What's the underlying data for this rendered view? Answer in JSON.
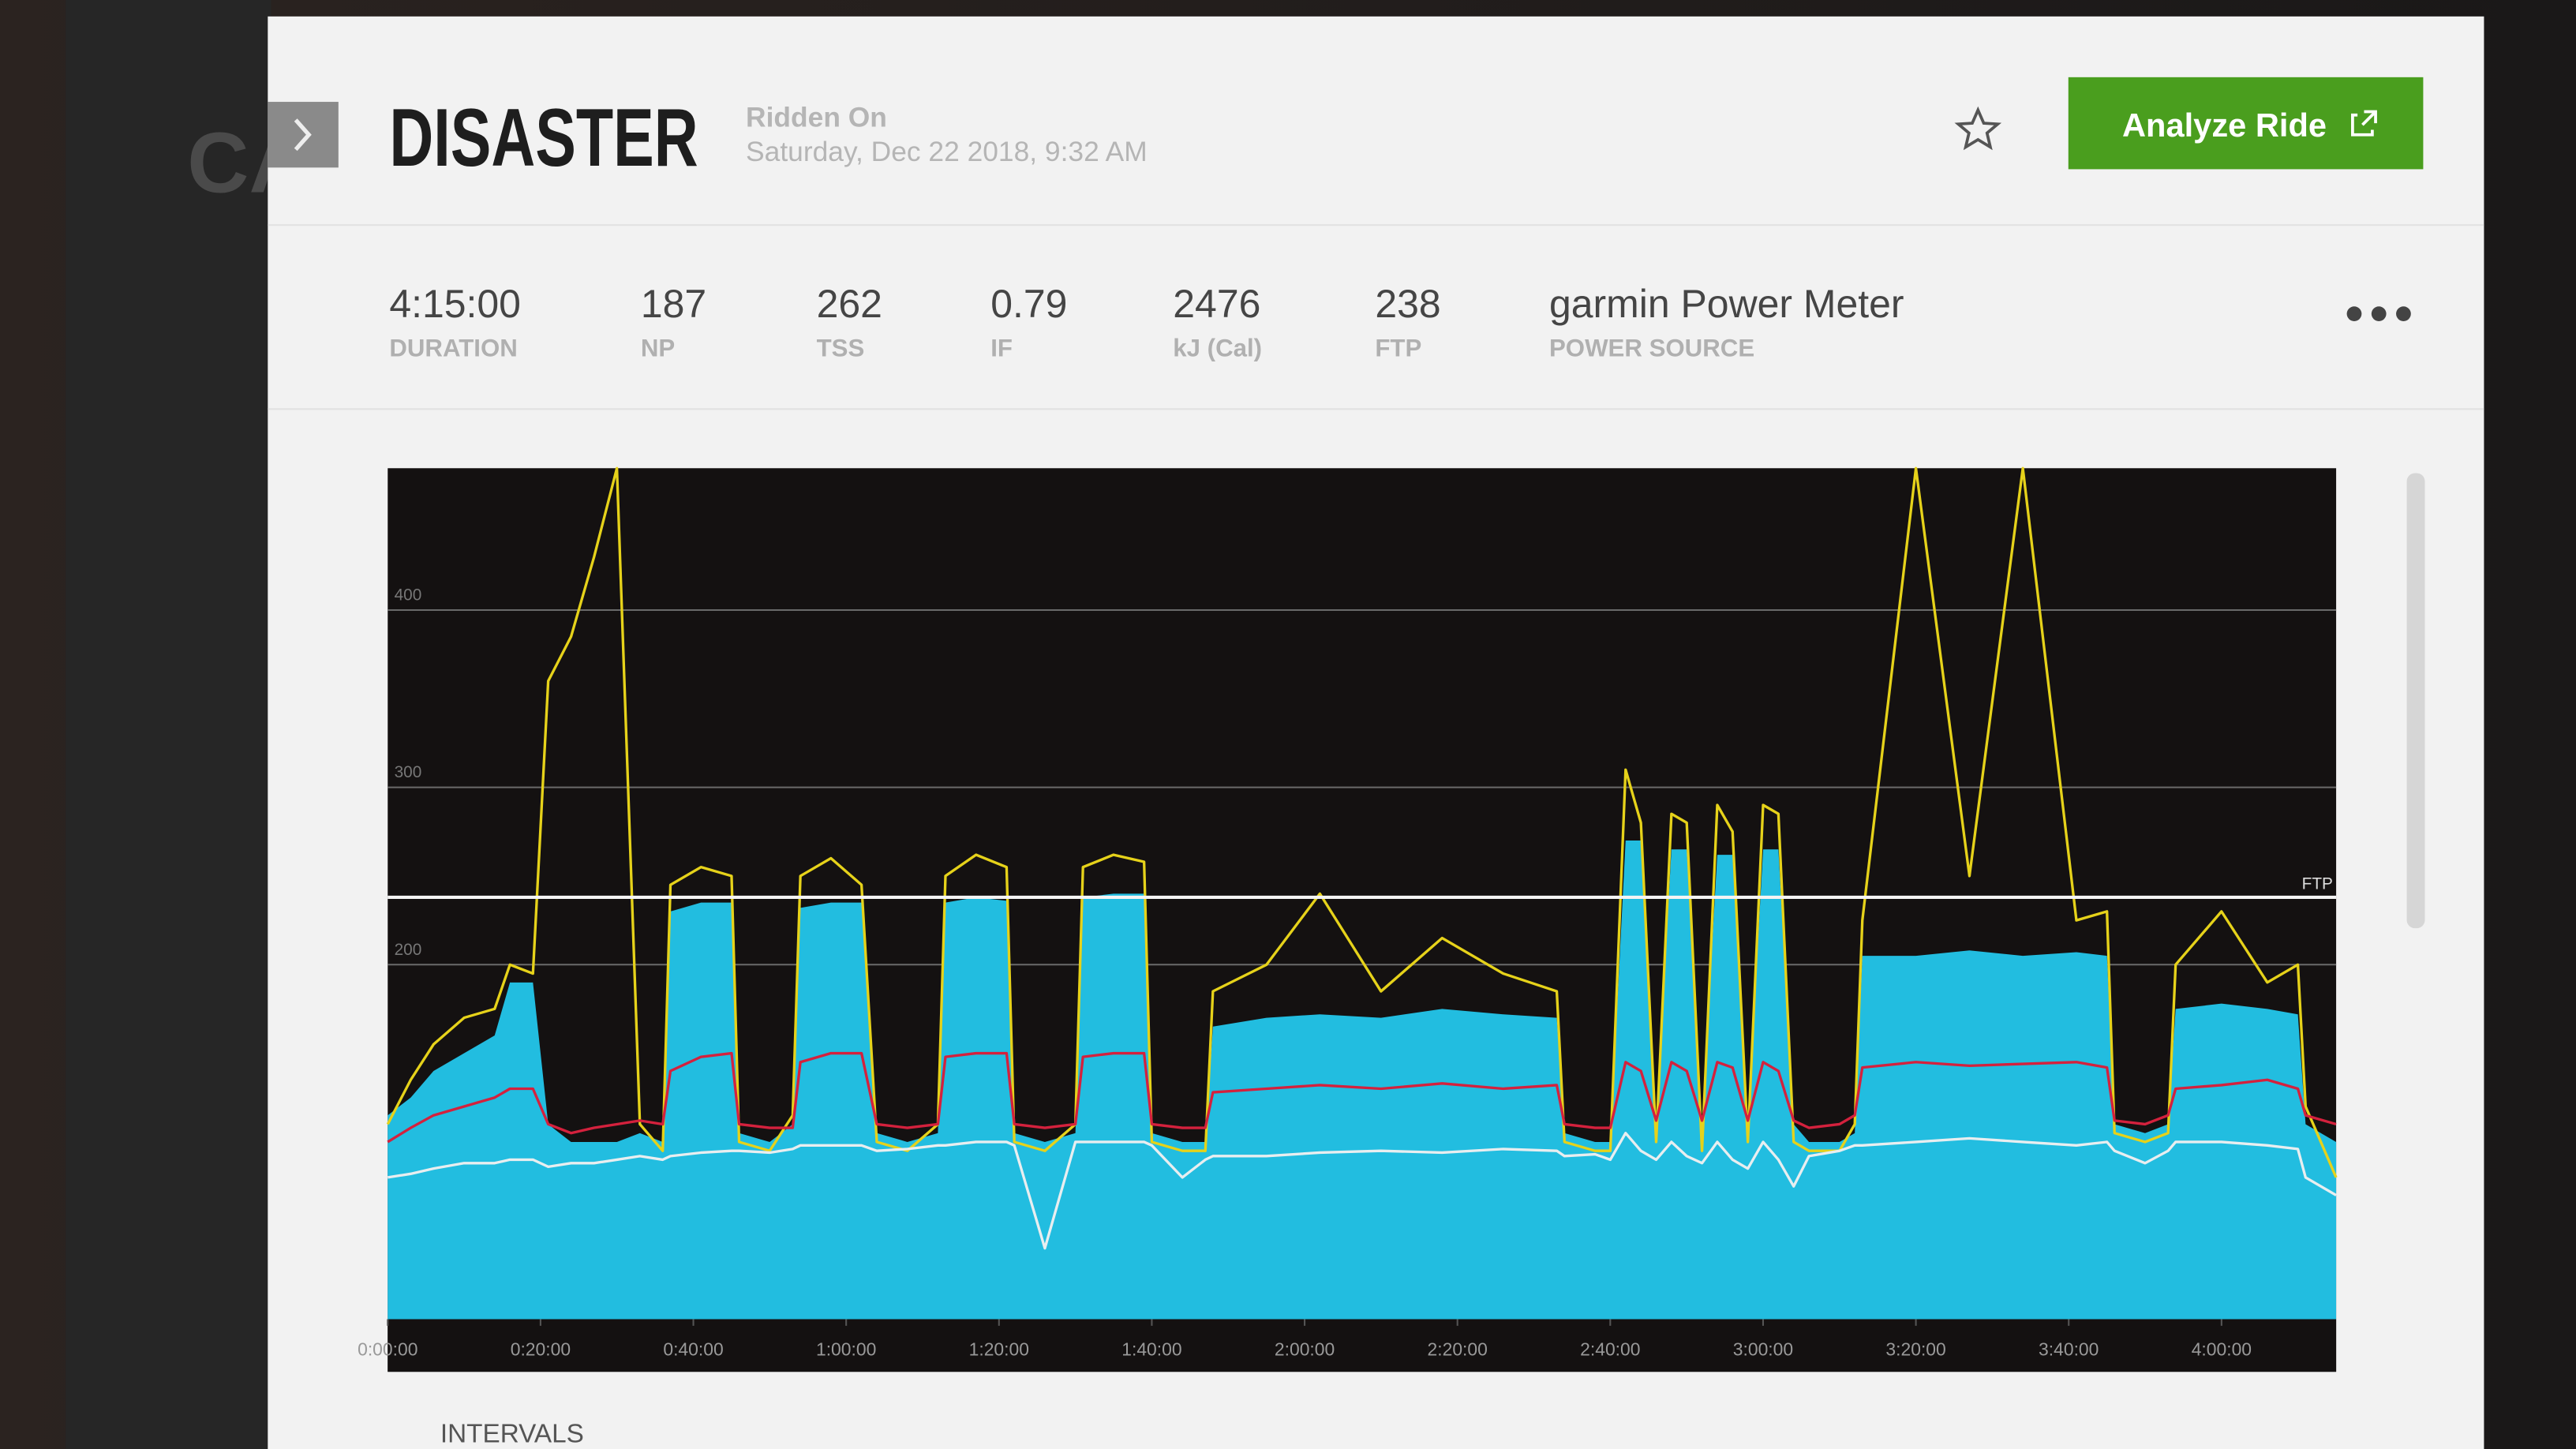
{
  "header": {
    "sidebar_text": "CA",
    "title": "DISASTER",
    "ridden_label": "Ridden On",
    "date": "Saturday, Dec 22 2018, 9:32 AM",
    "button": "Analyze Ride"
  },
  "stats": [
    {
      "value": "4:15:00",
      "label": "DURATION"
    },
    {
      "value": "187",
      "label": "NP"
    },
    {
      "value": "262",
      "label": "TSS"
    },
    {
      "value": "0.79",
      "label": "IF"
    },
    {
      "value": "2476",
      "label": "kJ (Cal)"
    },
    {
      "value": "238",
      "label": "FTP"
    },
    {
      "value": "garmin Power Meter",
      "label": "POWER SOURCE"
    }
  ],
  "chart_data": {
    "type": "line",
    "x": [
      0,
      3,
      6,
      10,
      14,
      16,
      19,
      21,
      24,
      27,
      30,
      33,
      36,
      37,
      41,
      45,
      46,
      50,
      53,
      54,
      58,
      62,
      64,
      68,
      72,
      73,
      77,
      81,
      82,
      86,
      90,
      91,
      95,
      99,
      100,
      104,
      107,
      108,
      115,
      122,
      130,
      138,
      146,
      153,
      154,
      158,
      160,
      162,
      164,
      166,
      168,
      170,
      172,
      174,
      176,
      178,
      180,
      182,
      184,
      186,
      190,
      192,
      193,
      200,
      207,
      214,
      221,
      225,
      226,
      230,
      233,
      234,
      240,
      246,
      250,
      251,
      255
    ],
    "series": [
      {
        "color": "#22bde0",
        "fill": true,
        "values": [
          115,
          125,
          140,
          150,
          160,
          190,
          190,
          110,
          100,
          100,
          100,
          105,
          100,
          230,
          235,
          235,
          105,
          100,
          110,
          232,
          235,
          235,
          105,
          100,
          105,
          235,
          238,
          236,
          105,
          100,
          105,
          238,
          240,
          240,
          105,
          100,
          100,
          165,
          170,
          172,
          170,
          175,
          172,
          170,
          105,
          100,
          100,
          270,
          270,
          110,
          265,
          265,
          110,
          262,
          262,
          110,
          265,
          265,
          110,
          100,
          100,
          105,
          205,
          205,
          208,
          205,
          207,
          205,
          110,
          105,
          110,
          175,
          178,
          175,
          172,
          110,
          100
        ]
      },
      {
        "color": "#e6d21a",
        "fill": false,
        "values": [
          110,
          135,
          155,
          170,
          175,
          200,
          195,
          360,
          385,
          430,
          480,
          110,
          95,
          245,
          255,
          250,
          100,
          95,
          115,
          250,
          260,
          245,
          100,
          95,
          110,
          250,
          262,
          255,
          100,
          95,
          110,
          255,
          262,
          258,
          100,
          95,
          95,
          185,
          200,
          240,
          185,
          215,
          195,
          185,
          100,
          95,
          95,
          310,
          280,
          100,
          285,
          280,
          95,
          290,
          275,
          100,
          290,
          285,
          100,
          95,
          95,
          110,
          225,
          480,
          250,
          480,
          225,
          230,
          105,
          100,
          105,
          200,
          230,
          190,
          200,
          120,
          80
        ]
      },
      {
        "color": "#d4213d",
        "fill": false,
        "values": [
          100,
          108,
          115,
          120,
          125,
          130,
          130,
          110,
          105,
          108,
          110,
          112,
          110,
          140,
          148,
          150,
          110,
          108,
          108,
          145,
          150,
          150,
          110,
          108,
          110,
          148,
          150,
          150,
          110,
          108,
          110,
          148,
          150,
          150,
          110,
          108,
          108,
          128,
          130,
          132,
          130,
          133,
          130,
          132,
          110,
          108,
          108,
          145,
          140,
          112,
          145,
          140,
          112,
          145,
          142,
          112,
          145,
          140,
          112,
          108,
          110,
          115,
          142,
          145,
          143,
          144,
          145,
          142,
          112,
          110,
          115,
          130,
          132,
          135,
          130,
          115,
          110
        ]
      },
      {
        "color": "#e8eef0",
        "fill": false,
        "values": [
          80,
          82,
          85,
          88,
          88,
          90,
          90,
          86,
          88,
          88,
          90,
          92,
          90,
          92,
          94,
          95,
          95,
          94,
          96,
          98,
          98,
          98,
          95,
          96,
          98,
          98,
          100,
          100,
          98,
          40,
          100,
          100,
          100,
          100,
          98,
          80,
          90,
          92,
          92,
          94,
          95,
          94,
          96,
          95,
          92,
          93,
          90,
          105,
          95,
          90,
          100,
          92,
          88,
          100,
          90,
          85,
          100,
          90,
          75,
          92,
          95,
          98,
          98,
          100,
          102,
          100,
          98,
          100,
          95,
          88,
          95,
          100,
          100,
          98,
          96,
          80,
          70
        ]
      }
    ],
    "xlim": [
      0,
      255
    ],
    "xticks": [
      {
        "value": 0,
        "label": "0:00:00"
      },
      {
        "value": 20,
        "label": "0:20:00"
      },
      {
        "value": 40,
        "label": "0:40:00"
      },
      {
        "value": 60,
        "label": "1:00:00"
      },
      {
        "value": 80,
        "label": "1:20:00"
      },
      {
        "value": 100,
        "label": "1:40:00"
      },
      {
        "value": 120,
        "label": "2:00:00"
      },
      {
        "value": 140,
        "label": "2:20:00"
      },
      {
        "value": 160,
        "label": "2:40:00"
      },
      {
        "value": 180,
        "label": "3:00:00"
      },
      {
        "value": 200,
        "label": "3:20:00"
      },
      {
        "value": 220,
        "label": "3:40:00"
      },
      {
        "value": 240,
        "label": "4:00:00"
      }
    ],
    "ylim": [
      0,
      480
    ],
    "yticks": [
      200,
      300,
      400
    ],
    "grid": true,
    "ftp_line": {
      "value": 238,
      "label": "FTP"
    }
  },
  "sections": {
    "intervals": "INTERVALS"
  }
}
